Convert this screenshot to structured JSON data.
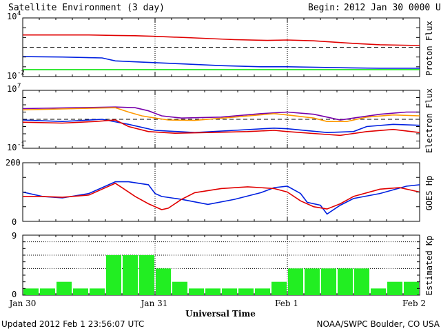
{
  "header": {
    "title": "Satellite Environment (3 day)",
    "begin_label": "Begin:",
    "begin_value": "2012 Jan 30 0000 UTC"
  },
  "footer": {
    "updated": "Updated 2012 Feb  1 23:56:07 UTC",
    "credit": "NOAA/SWPC Boulder, CO USA"
  },
  "colors": {
    "red": "#e00000",
    "blue": "#0020e0",
    "green": "#00e000",
    "orange": "#ff9900",
    "purple": "#7700aa",
    "kp_bar": "#22ee22"
  },
  "chart_data": [
    {
      "type": "line",
      "panel_label": "Proton Flux",
      "y_scale": "log",
      "ylim": [
        0.01,
        10000
      ],
      "ticks": {
        "top_base": "10",
        "top_exp": "4",
        "bottom_base": "10",
        "bottom_exp": "-2"
      },
      "threshold": 10,
      "series": [
        {
          "color_key": "red",
          "x": [
            0,
            0.25,
            0.5,
            0.7,
            0.85,
            1.0,
            1.3,
            1.6,
            1.85,
            2.0,
            2.2,
            2.5,
            2.7,
            3.0
          ],
          "y": [
            180,
            180,
            180,
            160,
            150,
            130,
            90,
            60,
            50,
            55,
            45,
            25,
            18,
            15
          ]
        },
        {
          "color_key": "blue",
          "x": [
            0,
            0.3,
            0.6,
            0.7,
            0.9,
            1.2,
            1.5,
            1.8,
            2.0,
            2.4,
            2.7,
            3.0
          ],
          "y": [
            1.1,
            1.0,
            0.8,
            0.4,
            0.3,
            0.2,
            0.13,
            0.1,
            0.1,
            0.08,
            0.07,
            0.07
          ]
        },
        {
          "color_key": "green",
          "x": [
            0,
            0.5,
            1.0,
            1.5,
            2.0,
            2.5,
            3.0
          ],
          "y": [
            0.05,
            0.05,
            0.05,
            0.05,
            0.05,
            0.05,
            0.05
          ]
        }
      ]
    },
    {
      "type": "line",
      "panel_label": "Electron Flux",
      "y_scale": "log",
      "ylim": [
        0.1,
        10000000
      ],
      "ticks": {
        "top_base": "10",
        "top_exp": "7",
        "bottom_base": "10",
        "bottom_exp": "-1"
      },
      "threshold": 1000,
      "series": [
        {
          "color_key": "purple",
          "x": [
            0,
            0.4,
            0.7,
            0.85,
            0.95,
            1.05,
            1.2,
            1.5,
            1.8,
            2.0,
            2.2,
            2.3,
            2.4,
            2.5,
            2.7,
            2.9,
            3.0
          ],
          "y": [
            30000,
            40000,
            50000,
            40000,
            15000,
            3000,
            1500,
            2000,
            6000,
            10000,
            5000,
            2000,
            800,
            1500,
            5000,
            10000,
            10000
          ]
        },
        {
          "color_key": "orange",
          "x": [
            0,
            0.4,
            0.7,
            0.8,
            0.9,
            1.0,
            1.1,
            1.3,
            1.6,
            1.9,
            2.0,
            2.2,
            2.3,
            2.45,
            2.6,
            2.8,
            3.0
          ],
          "y": [
            20000,
            30000,
            40000,
            10000,
            3000,
            1500,
            800,
            700,
            2000,
            6000,
            4000,
            1500,
            500,
            500,
            2000,
            4000,
            3000
          ]
        },
        {
          "color_key": "blue",
          "x": [
            0,
            0.3,
            0.6,
            0.8,
            1.0,
            1.3,
            1.6,
            1.9,
            2.0,
            2.3,
            2.5,
            2.6,
            2.8,
            3.0
          ],
          "y": [
            800,
            500,
            1000,
            200,
            30,
            15,
            30,
            60,
            50,
            15,
            20,
            100,
            200,
            150
          ]
        },
        {
          "color_key": "red",
          "x": [
            0,
            0.3,
            0.55,
            0.7,
            0.8,
            0.95,
            1.15,
            1.4,
            1.7,
            1.9,
            2.0,
            2.3,
            2.4,
            2.6,
            2.8,
            3.0
          ],
          "y": [
            400,
            300,
            500,
            800,
            100,
            20,
            12,
            15,
            20,
            30,
            20,
            8,
            6,
            20,
            40,
            15
          ]
        }
      ]
    },
    {
      "type": "line",
      "panel_label": "GOES Hp",
      "y_scale": "linear",
      "ylim": [
        0,
        200
      ],
      "ticks": {
        "top": "200",
        "bottom": "0"
      },
      "series": [
        {
          "color_key": "blue",
          "x": [
            0,
            0.15,
            0.3,
            0.5,
            0.6,
            0.7,
            0.8,
            0.95,
            1.0,
            1.05,
            1.2,
            1.4,
            1.6,
            1.8,
            1.9,
            2.0,
            2.1,
            2.15,
            2.25,
            2.3,
            2.4,
            2.5,
            2.7,
            2.9,
            3.0
          ],
          "y": [
            100,
            85,
            80,
            95,
            115,
            135,
            135,
            125,
            95,
            85,
            75,
            58,
            75,
            98,
            115,
            120,
            95,
            65,
            55,
            25,
            55,
            78,
            95,
            120,
            125
          ]
        },
        {
          "color_key": "red",
          "x": [
            0,
            0.15,
            0.3,
            0.5,
            0.6,
            0.7,
            0.75,
            0.85,
            0.95,
            1.05,
            1.1,
            1.2,
            1.3,
            1.5,
            1.7,
            1.9,
            2.0,
            2.1,
            2.2,
            2.3,
            2.4,
            2.5,
            2.7,
            2.85,
            3.0
          ],
          "y": [
            85,
            85,
            82,
            90,
            110,
            130,
            115,
            85,
            60,
            40,
            45,
            75,
            98,
            112,
            118,
            112,
            100,
            70,
            50,
            42,
            60,
            85,
            110,
            115,
            100
          ]
        }
      ]
    },
    {
      "type": "bar",
      "panel_label": "Estimated Kp",
      "ylim": [
        0,
        9
      ],
      "ticks": {
        "top": "9",
        "bottom": "0"
      },
      "gridlines": [
        4,
        6,
        8
      ],
      "kp": [
        1,
        1,
        2,
        1,
        1,
        6,
        6,
        6,
        4,
        2,
        1,
        1,
        1,
        1,
        1,
        2,
        4,
        4,
        4,
        4,
        4,
        1,
        2,
        2
      ]
    }
  ],
  "x_axis": {
    "title": "Universal Time",
    "labels": [
      "Jan 30",
      "Jan 31",
      "Feb 1",
      "Feb 2"
    ]
  }
}
